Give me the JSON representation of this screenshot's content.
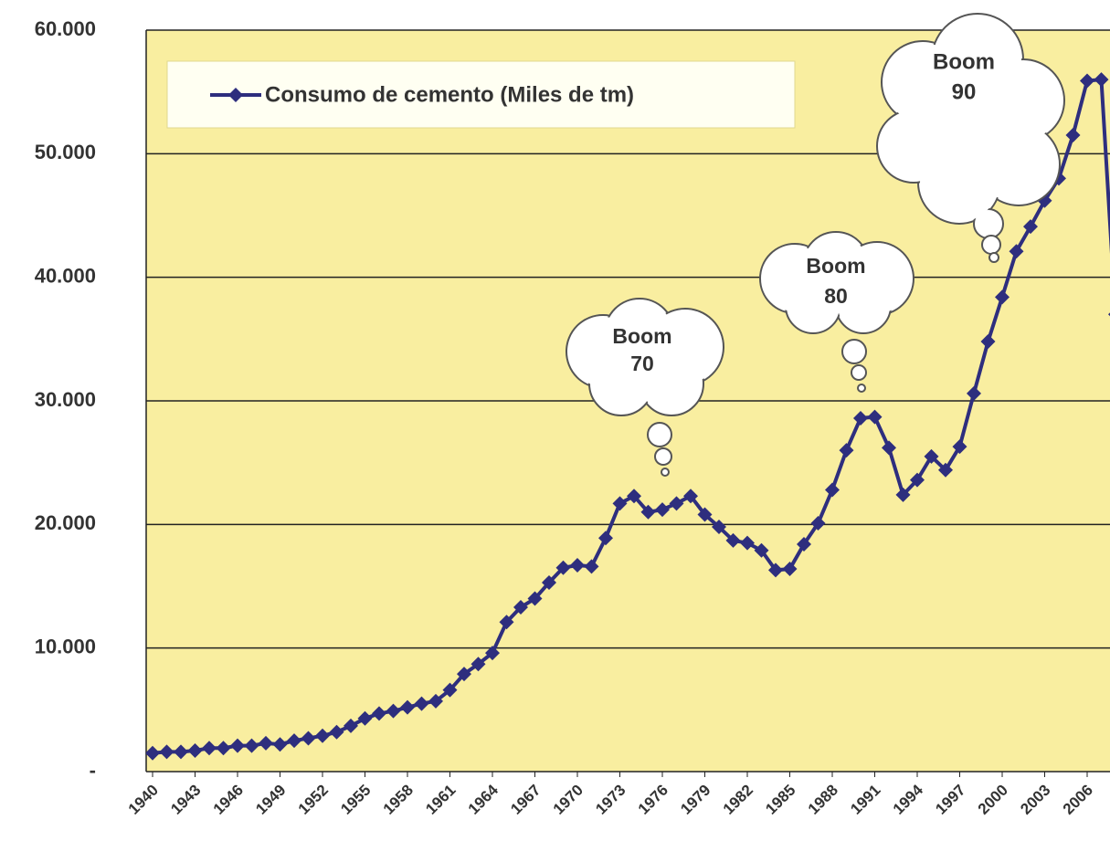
{
  "chart_data": {
    "type": "line",
    "series": [
      {
        "name": "Consumo de cemento (Miles de tm)",
        "color": "#2e2e7e",
        "values": [
          1500,
          1600,
          1600,
          1700,
          1900,
          1900,
          2100,
          2100,
          2300,
          2200,
          2500,
          2700,
          2900,
          3200,
          3700,
          4300,
          4700,
          4900,
          5200,
          5500,
          5700,
          6600,
          7900,
          8700,
          9600,
          12100,
          13300,
          14000,
          15300,
          16500,
          16700,
          16600,
          18900,
          21700,
          22300,
          21000,
          21200,
          21700,
          22300,
          20800,
          19800,
          18700,
          18500,
          17900,
          16300,
          16400,
          18400,
          20100,
          22800,
          26000,
          28600,
          28700,
          26200,
          22400,
          23600,
          25500,
          24400,
          26300,
          30600,
          34800,
          38400,
          42100,
          44100,
          46200,
          48000,
          51500,
          55900,
          56000,
          37000
        ]
      }
    ],
    "categories": [
      "1940",
      null,
      null,
      "1943",
      null,
      null,
      "1946",
      null,
      null,
      "1949",
      null,
      null,
      "1952",
      null,
      null,
      "1955",
      null,
      null,
      "1958",
      null,
      null,
      "1961",
      null,
      null,
      "1964",
      null,
      null,
      "1967",
      null,
      null,
      "1970",
      null,
      null,
      "1973",
      null,
      null,
      "1976",
      null,
      null,
      "1979",
      null,
      null,
      "1982",
      null,
      null,
      "1985",
      null,
      null,
      "1988",
      null,
      null,
      "1991",
      null,
      null,
      "1994",
      null,
      null,
      "1997",
      null,
      null,
      "2000",
      null,
      null,
      "2003",
      null,
      null,
      "2006",
      null,
      null
    ],
    "ylim": [
      0,
      60000
    ],
    "yticks": [
      {
        "value": 0,
        "label": "-"
      },
      {
        "value": 10000,
        "label": "10.000"
      },
      {
        "value": 20000,
        "label": "20.000"
      },
      {
        "value": 30000,
        "label": "30.000"
      },
      {
        "value": 40000,
        "label": "40.000"
      },
      {
        "value": 50000,
        "label": "50.000"
      },
      {
        "value": 60000,
        "label": "60.000"
      }
    ],
    "grid": true,
    "background": "#f9eea0",
    "annotations": [
      [
        "Boom",
        "70"
      ],
      [
        "Boom",
        "80"
      ],
      [
        "Boom",
        "90"
      ]
    ]
  }
}
